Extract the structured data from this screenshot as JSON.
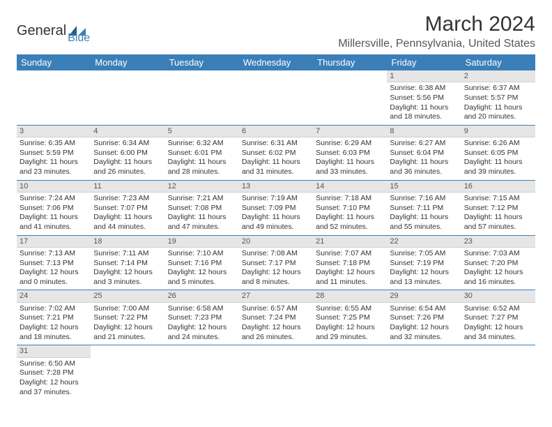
{
  "brand": {
    "name1": "General",
    "name2": "Blue",
    "color1": "#333333",
    "color2": "#3b7fb8"
  },
  "title": "March 2024",
  "location": "Millersville, Pennsylvania, United States",
  "header_bg": "#3b7fb8",
  "header_fg": "#ffffff",
  "daynum_bg": "#e6e6e6",
  "border_color": "#3b7fb8",
  "days": [
    "Sunday",
    "Monday",
    "Tuesday",
    "Wednesday",
    "Thursday",
    "Friday",
    "Saturday"
  ],
  "weeks": [
    [
      null,
      null,
      null,
      null,
      null,
      {
        "n": "1",
        "sr": "6:38 AM",
        "ss": "5:56 PM",
        "dl": "11 hours and 18 minutes."
      },
      {
        "n": "2",
        "sr": "6:37 AM",
        "ss": "5:57 PM",
        "dl": "11 hours and 20 minutes."
      }
    ],
    [
      {
        "n": "3",
        "sr": "6:35 AM",
        "ss": "5:59 PM",
        "dl": "11 hours and 23 minutes."
      },
      {
        "n": "4",
        "sr": "6:34 AM",
        "ss": "6:00 PM",
        "dl": "11 hours and 26 minutes."
      },
      {
        "n": "5",
        "sr": "6:32 AM",
        "ss": "6:01 PM",
        "dl": "11 hours and 28 minutes."
      },
      {
        "n": "6",
        "sr": "6:31 AM",
        "ss": "6:02 PM",
        "dl": "11 hours and 31 minutes."
      },
      {
        "n": "7",
        "sr": "6:29 AM",
        "ss": "6:03 PM",
        "dl": "11 hours and 33 minutes."
      },
      {
        "n": "8",
        "sr": "6:27 AM",
        "ss": "6:04 PM",
        "dl": "11 hours and 36 minutes."
      },
      {
        "n": "9",
        "sr": "6:26 AM",
        "ss": "6:05 PM",
        "dl": "11 hours and 39 minutes."
      }
    ],
    [
      {
        "n": "10",
        "sr": "7:24 AM",
        "ss": "7:06 PM",
        "dl": "11 hours and 41 minutes."
      },
      {
        "n": "11",
        "sr": "7:23 AM",
        "ss": "7:07 PM",
        "dl": "11 hours and 44 minutes."
      },
      {
        "n": "12",
        "sr": "7:21 AM",
        "ss": "7:08 PM",
        "dl": "11 hours and 47 minutes."
      },
      {
        "n": "13",
        "sr": "7:19 AM",
        "ss": "7:09 PM",
        "dl": "11 hours and 49 minutes."
      },
      {
        "n": "14",
        "sr": "7:18 AM",
        "ss": "7:10 PM",
        "dl": "11 hours and 52 minutes."
      },
      {
        "n": "15",
        "sr": "7:16 AM",
        "ss": "7:11 PM",
        "dl": "11 hours and 55 minutes."
      },
      {
        "n": "16",
        "sr": "7:15 AM",
        "ss": "7:12 PM",
        "dl": "11 hours and 57 minutes."
      }
    ],
    [
      {
        "n": "17",
        "sr": "7:13 AM",
        "ss": "7:13 PM",
        "dl": "12 hours and 0 minutes."
      },
      {
        "n": "18",
        "sr": "7:11 AM",
        "ss": "7:14 PM",
        "dl": "12 hours and 3 minutes."
      },
      {
        "n": "19",
        "sr": "7:10 AM",
        "ss": "7:16 PM",
        "dl": "12 hours and 5 minutes."
      },
      {
        "n": "20",
        "sr": "7:08 AM",
        "ss": "7:17 PM",
        "dl": "12 hours and 8 minutes."
      },
      {
        "n": "21",
        "sr": "7:07 AM",
        "ss": "7:18 PM",
        "dl": "12 hours and 11 minutes."
      },
      {
        "n": "22",
        "sr": "7:05 AM",
        "ss": "7:19 PM",
        "dl": "12 hours and 13 minutes."
      },
      {
        "n": "23",
        "sr": "7:03 AM",
        "ss": "7:20 PM",
        "dl": "12 hours and 16 minutes."
      }
    ],
    [
      {
        "n": "24",
        "sr": "7:02 AM",
        "ss": "7:21 PM",
        "dl": "12 hours and 18 minutes."
      },
      {
        "n": "25",
        "sr": "7:00 AM",
        "ss": "7:22 PM",
        "dl": "12 hours and 21 minutes."
      },
      {
        "n": "26",
        "sr": "6:58 AM",
        "ss": "7:23 PM",
        "dl": "12 hours and 24 minutes."
      },
      {
        "n": "27",
        "sr": "6:57 AM",
        "ss": "7:24 PM",
        "dl": "12 hours and 26 minutes."
      },
      {
        "n": "28",
        "sr": "6:55 AM",
        "ss": "7:25 PM",
        "dl": "12 hours and 29 minutes."
      },
      {
        "n": "29",
        "sr": "6:54 AM",
        "ss": "7:26 PM",
        "dl": "12 hours and 32 minutes."
      },
      {
        "n": "30",
        "sr": "6:52 AM",
        "ss": "7:27 PM",
        "dl": "12 hours and 34 minutes."
      }
    ],
    [
      {
        "n": "31",
        "sr": "6:50 AM",
        "ss": "7:28 PM",
        "dl": "12 hours and 37 minutes."
      },
      null,
      null,
      null,
      null,
      null,
      null
    ]
  ],
  "labels": {
    "sunrise": "Sunrise:",
    "sunset": "Sunset:",
    "daylight": "Daylight:"
  }
}
